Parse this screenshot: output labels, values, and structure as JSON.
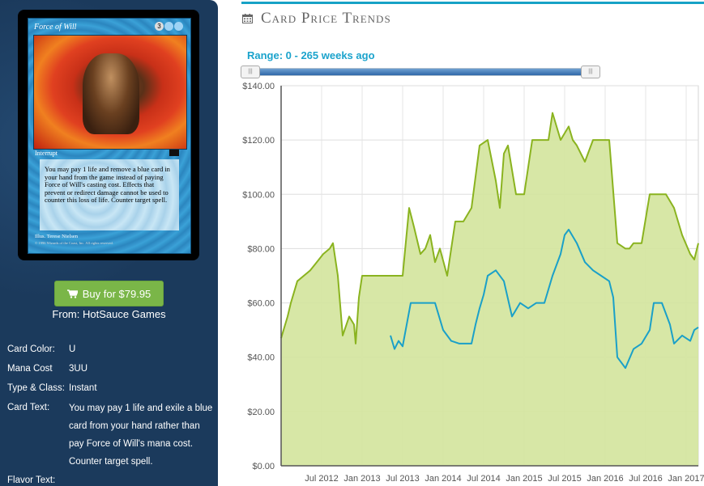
{
  "card": {
    "name": "Force of Will",
    "cost_symbols": [
      "3",
      "U",
      "U"
    ],
    "type_line": "Interrupt",
    "rules_text": "You may pay 1 life and remove a blue card in your hand from the game instead of paying Force of Will's casting cost. Effects that prevent or redirect damage cannot be used to counter this loss of life. Counter target spell.",
    "illustrator": "Illus. Terese Nielsen",
    "copyright": "© 1996 Wizards of the Coast, Inc. All rights reserved."
  },
  "purchase": {
    "button_label": "Buy for $79.95",
    "button_icon": "shopping-cart-icon",
    "from_text": "From: HotSauce Games"
  },
  "attributes": [
    {
      "label": "Card Color:",
      "value": "U"
    },
    {
      "label": "Mana Cost",
      "value": "3UU"
    },
    {
      "label": "Type & Class:",
      "value": "Instant"
    },
    {
      "label": "Card Text:",
      "value": "You may pay 1 life and exile a blue card from your hand rather than pay Force of Will's mana cost. Counter target spell."
    },
    {
      "label": "Flavor Text:",
      "value": ""
    }
  ],
  "section": {
    "title": "Card Price Trends",
    "icon": "calendar-icon",
    "range_label": "Range: 0 - 265 weeks ago",
    "slider": {
      "min_weeks": 0,
      "max_weeks": 265
    },
    "colors": {
      "accent": "#17a2c6",
      "green_line": "#8ab31f",
      "green_fill": "#d3e49c",
      "blue_line": "#1aa0c8"
    }
  },
  "chart_data": {
    "type": "area",
    "y_ticks": [
      "$0.00",
      "$20.00",
      "$40.00",
      "$60.00",
      "$80.00",
      "$100.00",
      "$120.00",
      "$140.00"
    ],
    "x_ticks": [
      "Jul 2012",
      "Jan 2013",
      "Jul 2013",
      "Jan 2014",
      "Jul 2014",
      "Jan 2015",
      "Jul 2015",
      "Jan 2016",
      "Jul 2016",
      "Jan 2017"
    ],
    "ylim": [
      0,
      140
    ],
    "grid": true,
    "series": [
      {
        "color": "#8ab31f",
        "filled": true,
        "x": [
          2012.0,
          2012.08,
          2012.12,
          2012.2,
          2012.28,
          2012.36,
          2012.44,
          2012.52,
          2012.6,
          2012.64,
          2012.7,
          2012.76,
          2012.84,
          2012.9,
          2012.92,
          2012.96,
          2013.0,
          2013.2,
          2013.4,
          2013.5,
          2013.58,
          2013.64,
          2013.72,
          2013.78,
          2013.84,
          2013.9,
          2013.96,
          2014.05,
          2014.15,
          2014.25,
          2014.35,
          2014.45,
          2014.55,
          2014.65,
          2014.7,
          2014.75,
          2014.8,
          2014.9,
          2015.0,
          2015.1,
          2015.2,
          2015.3,
          2015.35,
          2015.45,
          2015.55,
          2015.6,
          2015.65,
          2015.75,
          2015.85,
          2015.95,
          2016.05,
          2016.15,
          2016.25,
          2016.3,
          2016.35,
          2016.45,
          2016.55,
          2016.65,
          2016.75,
          2016.85,
          2016.95,
          2017.05,
          2017.1,
          2017.15
        ],
        "y": [
          47,
          55,
          60,
          68,
          70,
          72,
          75,
          78,
          80,
          82,
          70,
          48,
          55,
          52,
          45,
          62,
          70,
          70,
          70,
          70,
          95,
          88,
          78,
          80,
          85,
          75,
          80,
          70,
          90,
          90,
          95,
          118,
          120,
          105,
          95,
          115,
          118,
          100,
          100,
          120,
          120,
          120,
          130,
          120,
          125,
          120,
          118,
          112,
          120,
          120,
          120,
          82,
          80,
          80,
          82,
          82,
          100,
          100,
          100,
          95,
          85,
          78,
          76,
          82
        ]
      },
      {
        "color": "#1aa0c8",
        "filled": false,
        "x": [
          2013.35,
          2013.4,
          2013.45,
          2013.5,
          2013.6,
          2013.7,
          2013.8,
          2013.9,
          2014.0,
          2014.1,
          2014.2,
          2014.3,
          2014.35,
          2014.4,
          2014.45,
          2014.5,
          2014.55,
          2014.65,
          2014.75,
          2014.85,
          2014.95,
          2015.05,
          2015.15,
          2015.25,
          2015.35,
          2015.45,
          2015.5,
          2015.55,
          2015.65,
          2015.75,
          2015.85,
          2015.95,
          2016.05,
          2016.1,
          2016.15,
          2016.25,
          2016.35,
          2016.45,
          2016.55,
          2016.6,
          2016.7,
          2016.8,
          2016.85,
          2016.95,
          2017.05,
          2017.1,
          2017.15
        ],
        "y": [
          48,
          43,
          46,
          44,
          60,
          60,
          60,
          60,
          50,
          46,
          45,
          45,
          45,
          52,
          58,
          63,
          70,
          72,
          68,
          55,
          60,
          58,
          60,
          60,
          70,
          78,
          85,
          87,
          82,
          75,
          72,
          70,
          68,
          62,
          40,
          36,
          43,
          45,
          50,
          60,
          60,
          52,
          45,
          48,
          46,
          50,
          51
        ]
      }
    ]
  }
}
